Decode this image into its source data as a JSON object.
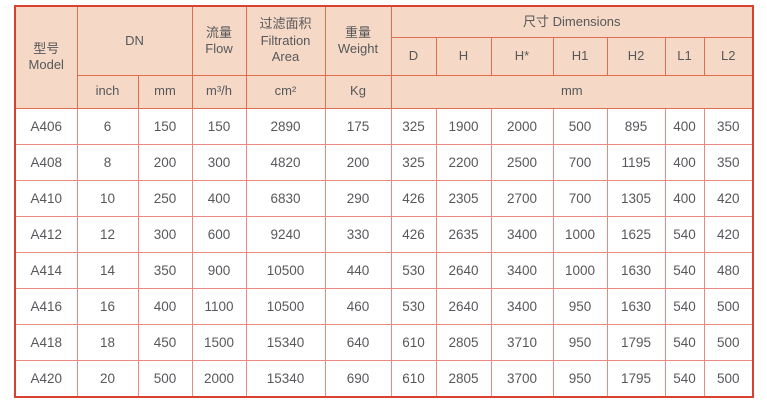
{
  "table": {
    "header": {
      "model": "型号\nModel",
      "dn": "DN",
      "flow": "流量\nFlow",
      "filtration": "过滤面积\nFiltration\nArea",
      "weight": "重量\nWeight",
      "dimensions": "尺寸 Dimensions",
      "dim_cols": [
        "D",
        "H",
        "H*",
        "H1",
        "H2",
        "L1",
        "L2"
      ],
      "units": {
        "inch": "inch",
        "mm": "mm",
        "flow": "m³/h",
        "filtration": "cm²",
        "weight": "Kg",
        "dimensions": "mm"
      }
    },
    "rows": [
      [
        "A406",
        "6",
        "150",
        "150",
        "2890",
        "175",
        "325",
        "1900",
        "2000",
        "500",
        "895",
        "400",
        "350"
      ],
      [
        "A408",
        "8",
        "200",
        "300",
        "4820",
        "200",
        "325",
        "2200",
        "2500",
        "700",
        "1195",
        "400",
        "350"
      ],
      [
        "A410",
        "10",
        "250",
        "400",
        "6830",
        "290",
        "426",
        "2305",
        "2700",
        "700",
        "1305",
        "400",
        "420"
      ],
      [
        "A412",
        "12",
        "300",
        "600",
        "9240",
        "330",
        "426",
        "2635",
        "3400",
        "1000",
        "1625",
        "540",
        "420"
      ],
      [
        "A414",
        "14",
        "350",
        "900",
        "10500",
        "440",
        "530",
        "2640",
        "3400",
        "1000",
        "1630",
        "540",
        "480"
      ],
      [
        "A416",
        "16",
        "400",
        "1100",
        "10500",
        "460",
        "530",
        "2640",
        "3400",
        "950",
        "1630",
        "540",
        "500"
      ],
      [
        "A418",
        "18",
        "450",
        "1500",
        "15340",
        "640",
        "610",
        "2805",
        "3710",
        "950",
        "1795",
        "540",
        "500"
      ],
      [
        "A420",
        "20",
        "500",
        "2000",
        "15340",
        "690",
        "610",
        "2805",
        "3700",
        "950",
        "1795",
        "540",
        "500"
      ]
    ],
    "colors": {
      "header_bg": "#f5d8c5",
      "outer_border": "#d8402f",
      "header_line": "#de6e4e",
      "body_line": "#ea8a80",
      "text": "#57585b"
    }
  },
  "chart_data": {
    "type": "table",
    "title": "尺寸 Dimensions specification table",
    "columns": [
      "型号 Model",
      "DN inch",
      "DN mm",
      "流量 Flow m³/h",
      "过滤面积 Filtration Area cm²",
      "重量 Weight Kg",
      "D mm",
      "H mm",
      "H* mm",
      "H1 mm",
      "H2 mm",
      "L1 mm",
      "L2 mm"
    ],
    "rows": [
      [
        "A406",
        6,
        150,
        150,
        2890,
        175,
        325,
        1900,
        2000,
        500,
        895,
        400,
        350
      ],
      [
        "A408",
        8,
        200,
        300,
        4820,
        200,
        325,
        2200,
        2500,
        700,
        1195,
        400,
        350
      ],
      [
        "A410",
        10,
        250,
        400,
        6830,
        290,
        426,
        2305,
        2700,
        700,
        1305,
        400,
        420
      ],
      [
        "A412",
        12,
        300,
        600,
        9240,
        330,
        426,
        2635,
        3400,
        1000,
        1625,
        540,
        420
      ],
      [
        "A414",
        14,
        350,
        900,
        10500,
        440,
        530,
        2640,
        3400,
        1000,
        1630,
        540,
        480
      ],
      [
        "A416",
        16,
        400,
        1100,
        10500,
        460,
        530,
        2640,
        3400,
        950,
        1630,
        540,
        500
      ],
      [
        "A418",
        18,
        450,
        1500,
        15340,
        640,
        610,
        2805,
        3710,
        950,
        1795,
        540,
        500
      ],
      [
        "A420",
        20,
        500,
        2000,
        15340,
        690,
        610,
        2805,
        3700,
        950,
        1795,
        540,
        500
      ]
    ]
  }
}
